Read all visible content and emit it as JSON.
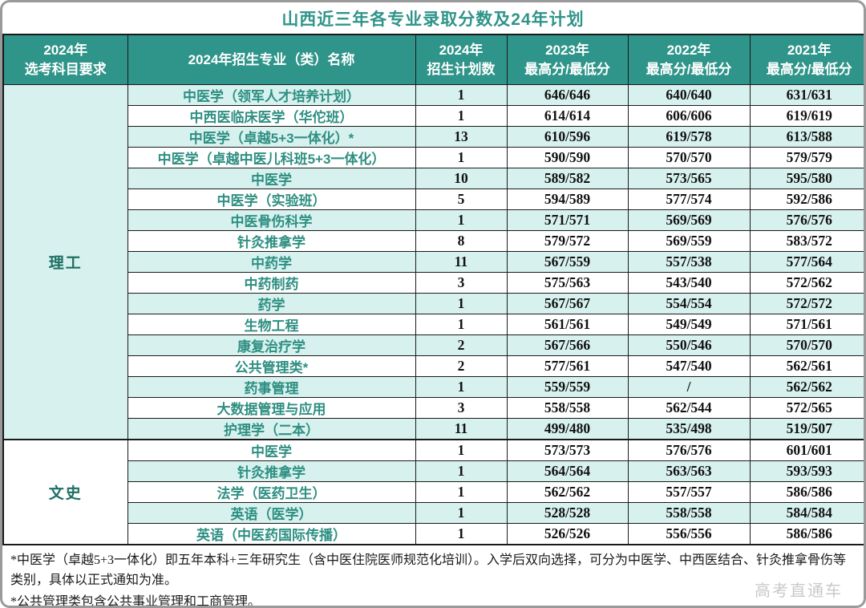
{
  "title": "山西近三年各专业录取分数及24年计划",
  "watermark": "高考直通车",
  "colors": {
    "header_bg": "#2f9489",
    "stripe_bg": "#d7f1ee",
    "title_color": "#2f9489",
    "major_name_color": "#2e8f82",
    "section_label_color": "#1e6f63",
    "score_color": "#111111",
    "border_color": "#1a1a1a",
    "watermark_color": "#c9c9c9"
  },
  "table": {
    "headers": [
      {
        "top": "2024年",
        "bottom": "选考科目要求"
      },
      {
        "top": "2024年招生专业（类）名称",
        "bottom": ""
      },
      {
        "top": "2024年",
        "bottom": "招生计划数"
      },
      {
        "top": "2023年",
        "bottom": "最高分/最低分"
      },
      {
        "top": "2022年",
        "bottom": "最高分/最低分"
      },
      {
        "top": "2021年",
        "bottom": "最高分/最低分"
      }
    ],
    "sections": [
      {
        "label": "理工",
        "rows": [
          {
            "major": "中医学（领军人才培养计划）",
            "plan": "1",
            "s2023": "646/646",
            "s2022": "640/640",
            "s2021": "631/631"
          },
          {
            "major": "中西医临床医学（华佗班）",
            "plan": "1",
            "s2023": "614/614",
            "s2022": "606/606",
            "s2021": "619/619"
          },
          {
            "major": "中医学（卓越5+3一体化）*",
            "plan": "13",
            "s2023": "610/596",
            "s2022": "619/578",
            "s2021": "613/588"
          },
          {
            "major": "中医学（卓越中医儿科班5+3一体化）",
            "plan": "1",
            "s2023": "590/590",
            "s2022": "570/570",
            "s2021": "579/579"
          },
          {
            "major": "中医学",
            "plan": "10",
            "s2023": "589/582",
            "s2022": "573/565",
            "s2021": "595/580"
          },
          {
            "major": "中医学（实验班）",
            "plan": "5",
            "s2023": "594/589",
            "s2022": "577/574",
            "s2021": "592/586"
          },
          {
            "major": "中医骨伤科学",
            "plan": "1",
            "s2023": "571/571",
            "s2022": "569/569",
            "s2021": "576/576"
          },
          {
            "major": "针灸推拿学",
            "plan": "8",
            "s2023": "579/572",
            "s2022": "569/559",
            "s2021": "583/572"
          },
          {
            "major": "中药学",
            "plan": "11",
            "s2023": "567/559",
            "s2022": "557/538",
            "s2021": "577/564"
          },
          {
            "major": "中药制药",
            "plan": "3",
            "s2023": "575/563",
            "s2022": "543/540",
            "s2021": "572/562"
          },
          {
            "major": "药学",
            "plan": "1",
            "s2023": "567/567",
            "s2022": "554/554",
            "s2021": "572/572"
          },
          {
            "major": "生物工程",
            "plan": "1",
            "s2023": "561/561",
            "s2022": "549/549",
            "s2021": "571/561"
          },
          {
            "major": "康复治疗学",
            "plan": "2",
            "s2023": "567/566",
            "s2022": "550/546",
            "s2021": "570/570"
          },
          {
            "major": "公共管理类*",
            "plan": "2",
            "s2023": "577/561",
            "s2022": "547/540",
            "s2021": "562/561"
          },
          {
            "major": "药事管理",
            "plan": "1",
            "s2023": "559/559",
            "s2022": "/",
            "s2021": "562/562"
          },
          {
            "major": "大数据管理与应用",
            "plan": "3",
            "s2023": "558/558",
            "s2022": "562/544",
            "s2021": "572/565"
          },
          {
            "major": "护理学（二本）",
            "plan": "11",
            "s2023": "499/480",
            "s2022": "535/498",
            "s2021": "519/507"
          }
        ]
      },
      {
        "label": "文史",
        "rows": [
          {
            "major": "中医学",
            "plan": "1",
            "s2023": "573/573",
            "s2022": "576/576",
            "s2021": "601/601"
          },
          {
            "major": "针灸推拿学",
            "plan": "1",
            "s2023": "564/564",
            "s2022": "563/563",
            "s2021": "593/593"
          },
          {
            "major": "法学（医药卫生）",
            "plan": "1",
            "s2023": "562/562",
            "s2022": "557/557",
            "s2021": "586/586"
          },
          {
            "major": "英语（医学）",
            "plan": "1",
            "s2023": "528/528",
            "s2022": "558/558",
            "s2021": "584/584"
          },
          {
            "major": "英语（中医药国际传播）",
            "plan": "1",
            "s2023": "526/526",
            "s2022": "556/556",
            "s2021": "586/586"
          }
        ]
      }
    ]
  },
  "notes": [
    "*中医学（卓越5+3一体化）即五年本科+三年研究生（含中医住院医师规范化培训）。入学后双向选择，可分为中医学、中西医结合、针灸推拿骨伤等类别，具体以正式通知为准。",
    "*公共管理类包含公共事业管理和工商管理。"
  ]
}
